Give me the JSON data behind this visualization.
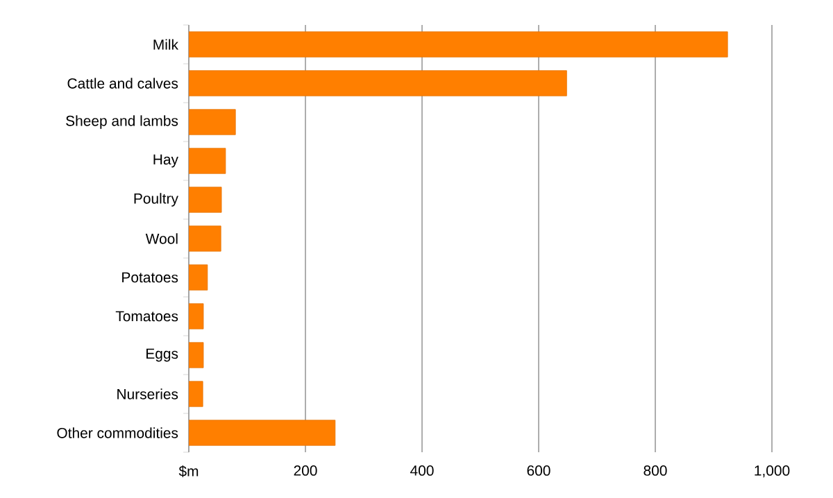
{
  "chart_data": {
    "type": "bar",
    "orientation": "horizontal",
    "categories": [
      "Milk",
      "Cattle and calves",
      "Sheep and lambs",
      "Hay",
      "Poultry",
      "Wool",
      "Potatoes",
      "Tomatoes",
      "Eggs",
      "Nurseries",
      "Other commodities"
    ],
    "values": [
      924,
      648,
      80,
      63,
      56,
      55,
      32,
      25,
      25,
      24,
      251
    ],
    "color": "#ff7f00",
    "xlim": [
      0,
      1000
    ],
    "xticks": [
      {
        "value": 0,
        "label": "$m"
      },
      200,
      400,
      600,
      800,
      {
        "value": 1000,
        "label": "1,000"
      }
    ],
    "grid": "x"
  }
}
